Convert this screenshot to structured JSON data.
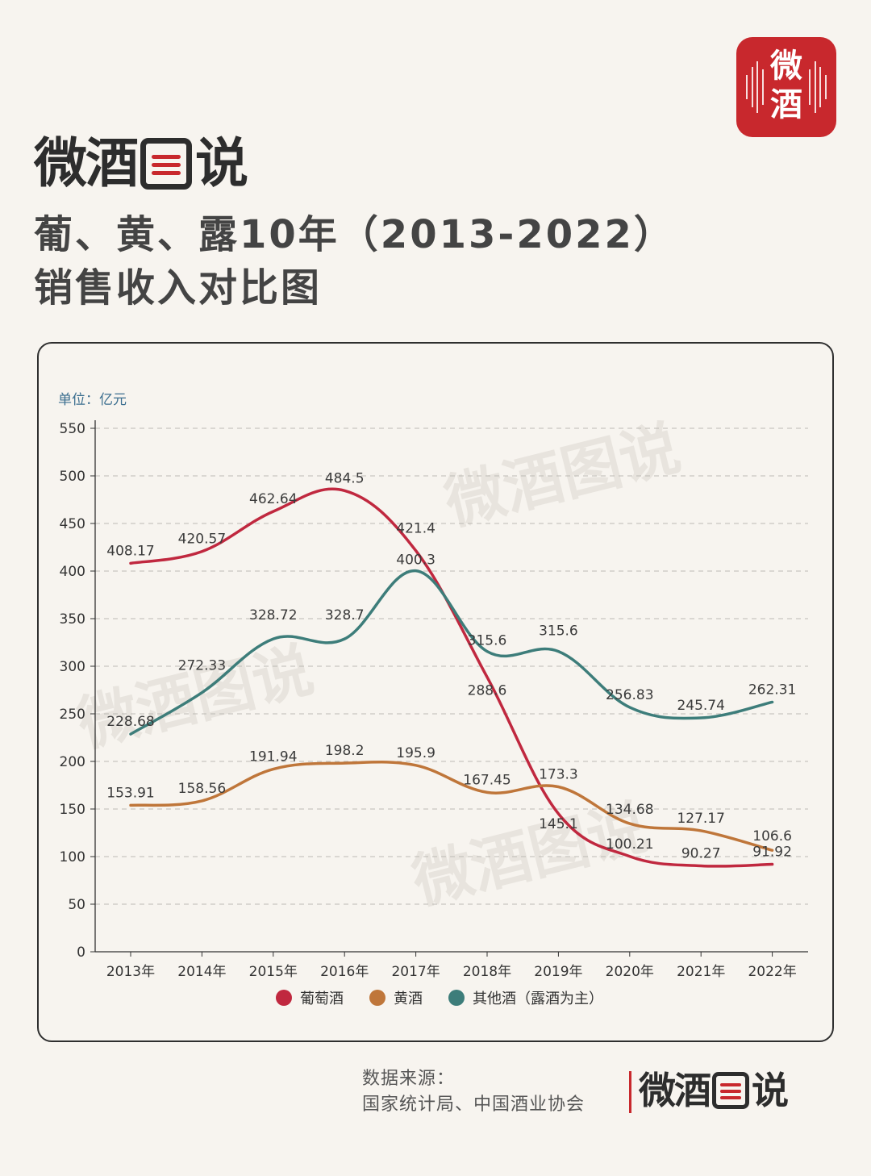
{
  "badge": {
    "line1": "微",
    "line2": "酒"
  },
  "brand": {
    "part1": "微",
    "part2": "酒",
    "part3": "说",
    "logo_text": "微酒图说"
  },
  "title": {
    "line1": "葡、黄、露10年（2013-2022）",
    "line2": "销售收入对比图"
  },
  "unit": "单位：亿元",
  "watermark": "微酒图说",
  "source": {
    "line1": "数据来源：",
    "line2": "国家统计局、中国酒业协会"
  },
  "footer_brand": {
    "part1": "微",
    "part2": "酒",
    "part3": "说"
  },
  "colors": {
    "grape": "#c0283f",
    "yellow": "#bf763a",
    "other": "#3d7d7a",
    "accent": "#c8282d"
  },
  "chart_data": {
    "type": "line",
    "title": "葡、黄、露10年（2013-2022）销售收入对比图",
    "ylabel": "单位：亿元",
    "ylim": [
      0,
      550
    ],
    "yticks": [
      0,
      50,
      100,
      150,
      200,
      250,
      300,
      350,
      400,
      450,
      500,
      550
    ],
    "grid": true,
    "legend_position": "bottom",
    "categories": [
      "2013年",
      "2014年",
      "2015年",
      "2016年",
      "2017年",
      "2018年",
      "2019年",
      "2020年",
      "2021年",
      "2022年"
    ],
    "series": [
      {
        "name": "葡萄酒",
        "color": "#c0283f",
        "values": [
          408.17,
          420.57,
          462.64,
          484.5,
          421.4,
          288.6,
          145.1,
          100.21,
          90.27,
          91.92
        ]
      },
      {
        "name": "黄酒",
        "color": "#bf763a",
        "values": [
          153.91,
          158.56,
          191.94,
          198.2,
          195.9,
          167.45,
          173.3,
          134.68,
          127.17,
          106.6
        ]
      },
      {
        "name": "其他酒（露酒为主）",
        "color": "#3d7d7a",
        "values": [
          228.68,
          272.33,
          328.72,
          328.7,
          400.3,
          315.6,
          315.6,
          256.83,
          245.74,
          262.31
        ]
      }
    ]
  }
}
